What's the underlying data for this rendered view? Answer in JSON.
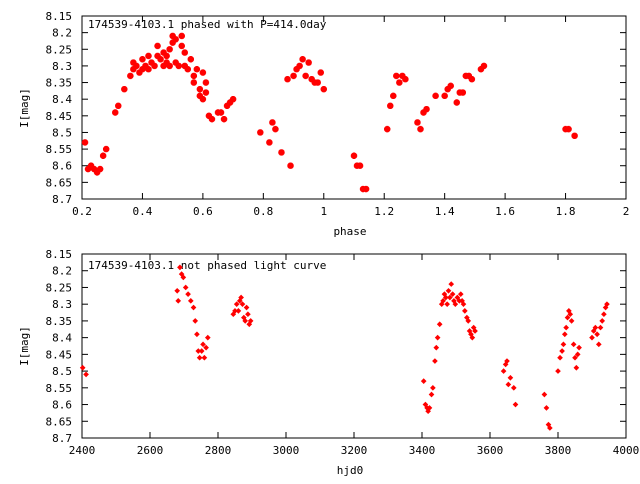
{
  "chart_data": [
    {
      "type": "scatter",
      "title": "174539-4103.1 phased with P=414.0day",
      "xlabel": "phase",
      "ylabel": "I[mag]",
      "xlim": [
        0.2,
        2.0
      ],
      "ylim": [
        8.7,
        8.15
      ],
      "y_inverted": true,
      "grid": false,
      "marker": "star",
      "color": "#ff0000",
      "xticks": [
        0.2,
        0.4,
        0.6,
        0.8,
        1.0,
        1.2,
        1.4,
        1.6,
        1.8,
        2.0
      ],
      "xtick_labels": [
        "0.2",
        "0.4",
        "0.6",
        "0.8",
        "1",
        "1.2",
        "1.4",
        "1.6",
        "1.8",
        "2"
      ],
      "yticks": [
        8.15,
        8.2,
        8.25,
        8.3,
        8.35,
        8.4,
        8.45,
        8.5,
        8.55,
        8.6,
        8.65,
        8.7
      ],
      "ytick_labels": [
        "8.15",
        "8.2",
        "8.25",
        "8.3",
        "8.35",
        "8.4",
        "8.45",
        "8.5",
        "8.55",
        "8.6",
        "8.65",
        "8.7"
      ],
      "points": [
        [
          0.21,
          8.53
        ],
        [
          0.22,
          8.61
        ],
        [
          0.23,
          8.6
        ],
        [
          0.24,
          8.61
        ],
        [
          0.25,
          8.62
        ],
        [
          0.26,
          8.61
        ],
        [
          0.27,
          8.57
        ],
        [
          0.28,
          8.55
        ],
        [
          0.31,
          8.44
        ],
        [
          0.32,
          8.42
        ],
        [
          0.34,
          8.37
        ],
        [
          0.36,
          8.33
        ],
        [
          0.37,
          8.31
        ],
        [
          0.38,
          8.3
        ],
        [
          0.37,
          8.29
        ],
        [
          0.39,
          8.32
        ],
        [
          0.4,
          8.28
        ],
        [
          0.4,
          8.31
        ],
        [
          0.41,
          8.3
        ],
        [
          0.42,
          8.27
        ],
        [
          0.42,
          8.31
        ],
        [
          0.43,
          8.29
        ],
        [
          0.44,
          8.3
        ],
        [
          0.45,
          8.27
        ],
        [
          0.45,
          8.24
        ],
        [
          0.46,
          8.28
        ],
        [
          0.47,
          8.3
        ],
        [
          0.47,
          8.26
        ],
        [
          0.48,
          8.27
        ],
        [
          0.48,
          8.29
        ],
        [
          0.49,
          8.3
        ],
        [
          0.49,
          8.25
        ],
        [
          0.5,
          8.21
        ],
        [
          0.5,
          8.23
        ],
        [
          0.51,
          8.29
        ],
        [
          0.51,
          8.22
        ],
        [
          0.52,
          8.3
        ],
        [
          0.53,
          8.24
        ],
        [
          0.53,
          8.21
        ],
        [
          0.54,
          8.26
        ],
        [
          0.54,
          8.3
        ],
        [
          0.55,
          8.31
        ],
        [
          0.56,
          8.28
        ],
        [
          0.57,
          8.33
        ],
        [
          0.57,
          8.35
        ],
        [
          0.58,
          8.31
        ],
        [
          0.59,
          8.37
        ],
        [
          0.59,
          8.39
        ],
        [
          0.6,
          8.4
        ],
        [
          0.6,
          8.32
        ],
        [
          0.61,
          8.35
        ],
        [
          0.61,
          8.38
        ],
        [
          0.62,
          8.45
        ],
        [
          0.63,
          8.46
        ],
        [
          0.65,
          8.44
        ],
        [
          0.66,
          8.44
        ],
        [
          0.67,
          8.46
        ],
        [
          0.68,
          8.42
        ],
        [
          0.69,
          8.41
        ],
        [
          0.7,
          8.4
        ],
        [
          0.79,
          8.5
        ],
        [
          0.82,
          8.53
        ],
        [
          0.83,
          8.47
        ],
        [
          0.84,
          8.49
        ],
        [
          0.86,
          8.56
        ],
        [
          0.88,
          8.34
        ],
        [
          0.89,
          8.6
        ],
        [
          0.9,
          8.33
        ],
        [
          0.91,
          8.31
        ],
        [
          0.92,
          8.3
        ],
        [
          0.93,
          8.28
        ],
        [
          0.94,
          8.33
        ],
        [
          0.95,
          8.29
        ],
        [
          0.96,
          8.34
        ],
        [
          0.97,
          8.35
        ],
        [
          0.98,
          8.35
        ],
        [
          0.99,
          8.32
        ],
        [
          1.0,
          8.37
        ],
        [
          1.1,
          8.57
        ],
        [
          1.11,
          8.6
        ],
        [
          1.12,
          8.6
        ],
        [
          1.13,
          8.67
        ],
        [
          1.14,
          8.67
        ],
        [
          1.21,
          8.49
        ],
        [
          1.22,
          8.42
        ],
        [
          1.23,
          8.39
        ],
        [
          1.24,
          8.33
        ],
        [
          1.25,
          8.35
        ],
        [
          1.26,
          8.33
        ],
        [
          1.27,
          8.34
        ],
        [
          1.31,
          8.47
        ],
        [
          1.32,
          8.49
        ],
        [
          1.33,
          8.44
        ],
        [
          1.34,
          8.43
        ],
        [
          1.37,
          8.39
        ],
        [
          1.4,
          8.39
        ],
        [
          1.41,
          8.37
        ],
        [
          1.42,
          8.36
        ],
        [
          1.44,
          8.41
        ],
        [
          1.45,
          8.38
        ],
        [
          1.46,
          8.38
        ],
        [
          1.47,
          8.33
        ],
        [
          1.48,
          8.33
        ],
        [
          1.49,
          8.34
        ],
        [
          1.52,
          8.31
        ],
        [
          1.53,
          8.3
        ],
        [
          1.8,
          8.49
        ],
        [
          1.81,
          8.49
        ],
        [
          1.83,
          8.51
        ]
      ]
    },
    {
      "type": "scatter",
      "title": "174539-4103.1 not phased light curve",
      "xlabel": "hjd0",
      "ylabel": "I[mag]",
      "xlim": [
        2400,
        4000
      ],
      "ylim": [
        8.7,
        8.15
      ],
      "y_inverted": true,
      "grid": false,
      "marker": "diamond",
      "color": "#ff0000",
      "xticks": [
        2400,
        2600,
        2800,
        3000,
        3200,
        3400,
        3600,
        3800,
        4000
      ],
      "xtick_labels": [
        "2400",
        "2600",
        "2800",
        "3000",
        "3200",
        "3400",
        "3600",
        "3800",
        "4000"
      ],
      "yticks": [
        8.15,
        8.2,
        8.25,
        8.3,
        8.35,
        8.4,
        8.45,
        8.5,
        8.55,
        8.6,
        8.65,
        8.7
      ],
      "ytick_labels": [
        "8.15",
        "8.2",
        "8.25",
        "8.3",
        "8.35",
        "8.4",
        "8.45",
        "8.5",
        "8.55",
        "8.6",
        "8.65",
        "8.7"
      ],
      "points": [
        [
          2402,
          8.49
        ],
        [
          2412,
          8.51
        ],
        [
          2680,
          8.26
        ],
        [
          2683,
          8.29
        ],
        [
          2688,
          8.19
        ],
        [
          2693,
          8.21
        ],
        [
          2698,
          8.22
        ],
        [
          2705,
          8.25
        ],
        [
          2712,
          8.27
        ],
        [
          2720,
          8.29
        ],
        [
          2728,
          8.31
        ],
        [
          2733,
          8.35
        ],
        [
          2738,
          8.39
        ],
        [
          2742,
          8.44
        ],
        [
          2746,
          8.46
        ],
        [
          2752,
          8.44
        ],
        [
          2756,
          8.42
        ],
        [
          2760,
          8.46
        ],
        [
          2765,
          8.43
        ],
        [
          2770,
          8.4
        ],
        [
          2845,
          8.33
        ],
        [
          2850,
          8.32
        ],
        [
          2855,
          8.3
        ],
        [
          2860,
          8.32
        ],
        [
          2864,
          8.29
        ],
        [
          2868,
          8.28
        ],
        [
          2872,
          8.3
        ],
        [
          2876,
          8.34
        ],
        [
          2880,
          8.35
        ],
        [
          2884,
          8.31
        ],
        [
          2888,
          8.33
        ],
        [
          2892,
          8.36
        ],
        [
          2896,
          8.35
        ],
        [
          3405,
          8.53
        ],
        [
          3410,
          8.6
        ],
        [
          3415,
          8.61
        ],
        [
          3418,
          8.62
        ],
        [
          3422,
          8.61
        ],
        [
          3428,
          8.57
        ],
        [
          3432,
          8.55
        ],
        [
          3438,
          8.47
        ],
        [
          3442,
          8.43
        ],
        [
          3446,
          8.4
        ],
        [
          3452,
          8.36
        ],
        [
          3458,
          8.3
        ],
        [
          3462,
          8.29
        ],
        [
          3466,
          8.27
        ],
        [
          3470,
          8.28
        ],
        [
          3474,
          8.3
        ],
        [
          3478,
          8.26
        ],
        [
          3482,
          8.28
        ],
        [
          3486,
          8.24
        ],
        [
          3490,
          8.27
        ],
        [
          3494,
          8.29
        ],
        [
          3498,
          8.3
        ],
        [
          3504,
          8.28
        ],
        [
          3510,
          8.29
        ],
        [
          3514,
          8.27
        ],
        [
          3518,
          8.29
        ],
        [
          3522,
          8.3
        ],
        [
          3526,
          8.32
        ],
        [
          3532,
          8.34
        ],
        [
          3536,
          8.35
        ],
        [
          3540,
          8.38
        ],
        [
          3544,
          8.39
        ],
        [
          3548,
          8.4
        ],
        [
          3552,
          8.37
        ],
        [
          3556,
          8.38
        ],
        [
          3640,
          8.5
        ],
        [
          3646,
          8.48
        ],
        [
          3650,
          8.47
        ],
        [
          3654,
          8.54
        ],
        [
          3660,
          8.52
        ],
        [
          3670,
          8.55
        ],
        [
          3675,
          8.6
        ],
        [
          3760,
          8.57
        ],
        [
          3766,
          8.61
        ],
        [
          3772,
          8.66
        ],
        [
          3776,
          8.67
        ],
        [
          3800,
          8.5
        ],
        [
          3806,
          8.46
        ],
        [
          3812,
          8.44
        ],
        [
          3816,
          8.42
        ],
        [
          3820,
          8.39
        ],
        [
          3824,
          8.37
        ],
        [
          3828,
          8.34
        ],
        [
          3832,
          8.32
        ],
        [
          3836,
          8.33
        ],
        [
          3840,
          8.35
        ],
        [
          3846,
          8.42
        ],
        [
          3850,
          8.46
        ],
        [
          3854,
          8.49
        ],
        [
          3858,
          8.45
        ],
        [
          3862,
          8.43
        ],
        [
          3900,
          8.4
        ],
        [
          3905,
          8.38
        ],
        [
          3910,
          8.37
        ],
        [
          3915,
          8.39
        ],
        [
          3920,
          8.42
        ],
        [
          3925,
          8.37
        ],
        [
          3930,
          8.35
        ],
        [
          3935,
          8.33
        ],
        [
          3940,
          8.31
        ],
        [
          3944,
          8.3
        ]
      ]
    }
  ]
}
